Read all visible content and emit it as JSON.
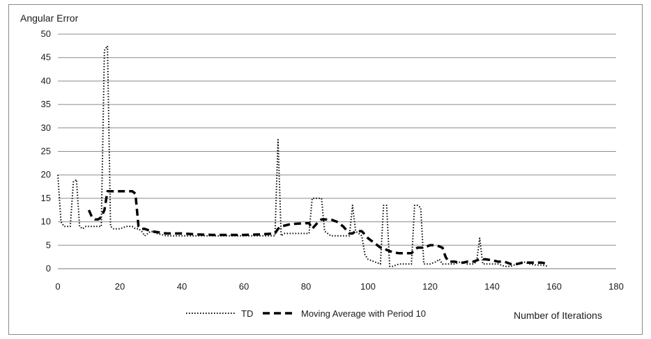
{
  "chart_data": {
    "type": "line",
    "title": "",
    "xlabel": "Number of Iterations",
    "ylabel": "Angular Error",
    "xlim": [
      0,
      180
    ],
    "ylim": [
      0,
      50
    ],
    "x_ticks": [
      "0",
      "20",
      "40",
      "60",
      "80",
      "100",
      "120",
      "140",
      "160",
      "180"
    ],
    "y_ticks": [
      "0",
      "5",
      "10",
      "15",
      "20",
      "25",
      "30",
      "35",
      "40",
      "45",
      "50"
    ],
    "grid": "horizontal",
    "legend_position": "bottom",
    "colors": {
      "series": "#000000",
      "grid": "#8c8c8c",
      "frame": "#8a8a8a"
    },
    "series": [
      {
        "name": "TD",
        "style": "dotted",
        "x": [
          0,
          1,
          2,
          3,
          4,
          5,
          6,
          7,
          8,
          9,
          10,
          11,
          12,
          13,
          14,
          15,
          16,
          17,
          18,
          20,
          22,
          24,
          25,
          26,
          27,
          28,
          30,
          32,
          35,
          40,
          45,
          50,
          55,
          60,
          65,
          69,
          70,
          71,
          72,
          73,
          75,
          78,
          80,
          81,
          82,
          84,
          85,
          86,
          88,
          90,
          92,
          94,
          95,
          96,
          98,
          99,
          100,
          102,
          104,
          105,
          106,
          107,
          108,
          110,
          112,
          114,
          115,
          116,
          117,
          118,
          120,
          122,
          123,
          124,
          126,
          128,
          130,
          132,
          134,
          135,
          136,
          137,
          138,
          140,
          142,
          144,
          146,
          148,
          150,
          152,
          154,
          156,
          158
        ],
        "values": [
          20,
          10,
          9,
          9,
          9,
          18.5,
          19,
          9,
          8.5,
          9,
          9,
          9,
          9,
          9,
          9,
          46.5,
          47.5,
          9,
          8.5,
          8.5,
          9,
          9,
          8.5,
          8.5,
          8,
          7,
          8,
          7.5,
          7,
          7,
          7,
          7,
          7,
          7,
          7,
          7,
          7,
          27.5,
          7,
          7.5,
          7.5,
          7.5,
          7.5,
          7.5,
          15,
          15,
          15,
          8,
          7,
          7,
          7,
          7,
          13.5,
          8,
          7,
          3,
          2,
          1.5,
          1,
          13.5,
          13.5,
          0.5,
          0.5,
          1,
          1,
          1,
          13.5,
          13.5,
          13,
          1,
          1,
          1.5,
          2,
          1,
          1,
          1,
          1.5,
          1,
          1,
          1.5,
          6.5,
          1,
          1,
          1,
          1,
          0.5,
          0.5,
          1,
          1.5,
          1,
          0.8,
          0.8,
          0.5
        ]
      },
      {
        "name": "Moving Average with Period 10",
        "style": "dashed",
        "x": [
          10,
          11,
          12,
          13,
          14,
          15,
          16,
          17,
          18,
          20,
          22,
          24,
          25,
          26,
          27,
          28,
          30,
          35,
          40,
          45,
          50,
          55,
          60,
          65,
          70,
          71,
          72,
          75,
          80,
          81,
          82,
          84,
          85,
          86,
          88,
          90,
          92,
          94,
          95,
          96,
          98,
          100,
          102,
          104,
          105,
          106,
          108,
          110,
          112,
          114,
          115,
          116,
          118,
          120,
          122,
          124,
          125,
          126,
          128,
          130,
          132,
          134,
          136,
          138,
          140,
          142,
          144,
          146,
          148,
          150,
          152,
          154,
          156,
          158
        ],
        "values": [
          12.5,
          11,
          10.5,
          10.5,
          11,
          12.5,
          16.5,
          16.5,
          16.5,
          16.5,
          16.5,
          16.5,
          16,
          9,
          8.5,
          8.5,
          8,
          7.5,
          7.5,
          7.3,
          7.2,
          7.2,
          7.2,
          7.3,
          7.5,
          8.5,
          9,
          9.5,
          9.7,
          9.7,
          8.5,
          10,
          10.5,
          10.5,
          10.5,
          10,
          9,
          7.5,
          7.5,
          8,
          8,
          6.5,
          5.5,
          4.5,
          4.5,
          4,
          3.5,
          3.3,
          3.3,
          3.3,
          4,
          4.5,
          4.5,
          5,
          5,
          4.5,
          2.5,
          1.5,
          1.5,
          1.2,
          1.5,
          1.5,
          2,
          2,
          1.8,
          1.5,
          1.5,
          1,
          1,
          1.3,
          1.3,
          1.3,
          1.3,
          1
        ]
      }
    ]
  }
}
